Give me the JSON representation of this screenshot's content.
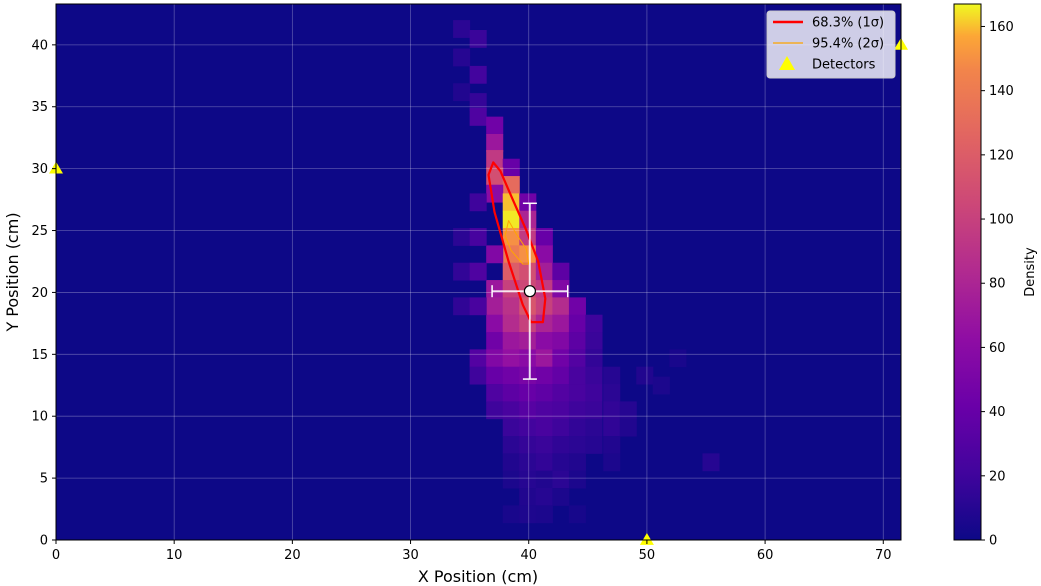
{
  "chart_data": {
    "type": "heatmap",
    "title": "",
    "xlabel": "X Position (cm)",
    "ylabel": "Y Position (cm)",
    "xlim": [
      0,
      71.5
    ],
    "ylim": [
      0,
      43.3
    ],
    "xticks": [
      0,
      10,
      20,
      30,
      40,
      50,
      60,
      70
    ],
    "yticks": [
      0,
      5,
      10,
      15,
      20,
      25,
      30,
      35,
      40
    ],
    "grid": true,
    "colormap": "plasma",
    "colorbar": {
      "label": "Density",
      "range": [
        0,
        167
      ],
      "ticks": [
        0,
        20,
        40,
        60,
        80,
        100,
        120,
        140,
        160
      ]
    },
    "bin_size": 1.4,
    "density_cells": [
      [
        34.3,
        41.3,
        12
      ],
      [
        35.7,
        40.5,
        18
      ],
      [
        34.3,
        39.0,
        10
      ],
      [
        35.7,
        37.6,
        22
      ],
      [
        34.3,
        36.2,
        8
      ],
      [
        35.7,
        35.4,
        16
      ],
      [
        35.7,
        34.2,
        28
      ],
      [
        37.1,
        33.5,
        45
      ],
      [
        37.1,
        32.1,
        70
      ],
      [
        37.1,
        30.8,
        95
      ],
      [
        38.5,
        30.1,
        40
      ],
      [
        37.1,
        29.4,
        110
      ],
      [
        38.5,
        28.7,
        130
      ],
      [
        37.1,
        28.0,
        60
      ],
      [
        38.5,
        27.3,
        160
      ],
      [
        39.9,
        27.3,
        45
      ],
      [
        38.5,
        25.9,
        165
      ],
      [
        39.9,
        25.9,
        80
      ],
      [
        38.5,
        24.5,
        150
      ],
      [
        39.9,
        24.5,
        95
      ],
      [
        41.3,
        24.5,
        40
      ],
      [
        38.5,
        23.1,
        140
      ],
      [
        39.9,
        23.1,
        150
      ],
      [
        41.3,
        23.1,
        60
      ],
      [
        37.1,
        23.1,
        55
      ],
      [
        38.5,
        21.7,
        120
      ],
      [
        39.9,
        21.7,
        110
      ],
      [
        41.3,
        21.7,
        75
      ],
      [
        42.7,
        21.7,
        35
      ],
      [
        37.1,
        20.3,
        70
      ],
      [
        38.5,
        20.3,
        100
      ],
      [
        39.9,
        20.3,
        105
      ],
      [
        41.3,
        20.3,
        95
      ],
      [
        42.7,
        20.3,
        55
      ],
      [
        37.1,
        18.9,
        75
      ],
      [
        38.5,
        18.9,
        90
      ],
      [
        39.9,
        18.9,
        115
      ],
      [
        41.3,
        18.9,
        100
      ],
      [
        42.7,
        18.9,
        85
      ],
      [
        44.1,
        18.9,
        45
      ],
      [
        37.1,
        17.5,
        60
      ],
      [
        38.5,
        17.5,
        85
      ],
      [
        39.9,
        17.5,
        100
      ],
      [
        41.3,
        17.5,
        80
      ],
      [
        42.7,
        17.5,
        70
      ],
      [
        44.1,
        17.5,
        40
      ],
      [
        45.5,
        17.5,
        20
      ],
      [
        37.1,
        16.1,
        45
      ],
      [
        38.5,
        16.1,
        70
      ],
      [
        39.9,
        16.1,
        75
      ],
      [
        41.3,
        16.1,
        60
      ],
      [
        42.7,
        16.1,
        55
      ],
      [
        44.1,
        16.1,
        35
      ],
      [
        45.5,
        16.1,
        18
      ],
      [
        35.7,
        14.7,
        30
      ],
      [
        37.1,
        14.7,
        55
      ],
      [
        38.5,
        14.7,
        65
      ],
      [
        39.9,
        14.7,
        60
      ],
      [
        41.3,
        14.7,
        70
      ],
      [
        42.7,
        14.7,
        45
      ],
      [
        44.1,
        14.7,
        30
      ],
      [
        45.5,
        14.7,
        15
      ],
      [
        35.7,
        13.3,
        20
      ],
      [
        37.1,
        13.3,
        40
      ],
      [
        38.5,
        13.3,
        45
      ],
      [
        39.9,
        13.3,
        50
      ],
      [
        41.3,
        13.3,
        45
      ],
      [
        42.7,
        13.3,
        38
      ],
      [
        44.1,
        13.3,
        25
      ],
      [
        45.5,
        13.3,
        18
      ],
      [
        47.0,
        13.3,
        10
      ],
      [
        37.1,
        11.9,
        28
      ],
      [
        38.5,
        11.9,
        35
      ],
      [
        39.9,
        11.9,
        40
      ],
      [
        41.3,
        11.9,
        36
      ],
      [
        42.7,
        11.9,
        30
      ],
      [
        44.1,
        11.9,
        25
      ],
      [
        45.5,
        11.9,
        20
      ],
      [
        47.0,
        11.9,
        12
      ],
      [
        37.1,
        10.5,
        20
      ],
      [
        38.5,
        10.5,
        25
      ],
      [
        39.9,
        10.5,
        32
      ],
      [
        41.3,
        10.5,
        28
      ],
      [
        42.7,
        10.5,
        26
      ],
      [
        44.1,
        10.5,
        20
      ],
      [
        45.5,
        10.5,
        18
      ],
      [
        47.0,
        10.5,
        15
      ],
      [
        48.4,
        10.5,
        10
      ],
      [
        38.5,
        9.1,
        18
      ],
      [
        39.9,
        9.1,
        22
      ],
      [
        41.3,
        9.1,
        25
      ],
      [
        42.7,
        9.1,
        20
      ],
      [
        44.1,
        9.1,
        15
      ],
      [
        45.5,
        9.1,
        12
      ],
      [
        47.0,
        9.1,
        14
      ],
      [
        48.4,
        9.1,
        8
      ],
      [
        38.5,
        7.7,
        12
      ],
      [
        39.9,
        7.7,
        16
      ],
      [
        41.3,
        7.7,
        18
      ],
      [
        42.7,
        7.7,
        14
      ],
      [
        44.1,
        7.7,
        12
      ],
      [
        45.5,
        7.7,
        10
      ],
      [
        47.0,
        7.7,
        8
      ],
      [
        38.5,
        6.3,
        8
      ],
      [
        39.9,
        6.3,
        12
      ],
      [
        41.3,
        6.3,
        15
      ],
      [
        42.7,
        6.3,
        10
      ],
      [
        44.1,
        6.3,
        8
      ],
      [
        47.0,
        6.3,
        6
      ],
      [
        38.5,
        4.9,
        6
      ],
      [
        39.9,
        4.9,
        10
      ],
      [
        41.3,
        4.9,
        8
      ],
      [
        42.7,
        4.9,
        12
      ],
      [
        44.1,
        4.9,
        6
      ],
      [
        39.9,
        3.5,
        8
      ],
      [
        41.3,
        3.5,
        10
      ],
      [
        42.7,
        3.5,
        6
      ],
      [
        38.5,
        2.1,
        5
      ],
      [
        39.9,
        2.1,
        7
      ],
      [
        41.3,
        2.1,
        6
      ],
      [
        44.1,
        2.1,
        4
      ],
      [
        49.8,
        13.3,
        8
      ],
      [
        51.2,
        12.5,
        6
      ],
      [
        52.6,
        14.7,
        5
      ],
      [
        55.4,
        6.3,
        10
      ],
      [
        34.3,
        24.5,
        12
      ],
      [
        34.3,
        21.7,
        15
      ],
      [
        34.3,
        18.9,
        14
      ],
      [
        35.7,
        21.7,
        28
      ],
      [
        35.7,
        24.5,
        24
      ],
      [
        35.7,
        18.9,
        25
      ],
      [
        35.7,
        27.3,
        20
      ]
    ],
    "contours": [
      {
        "label": "68.3% (1σ)",
        "color": "#ff0000",
        "x": [
          37.0,
          37.6,
          38.6,
          39.8,
          40.8,
          41.4,
          41.2,
          40.2,
          39.5,
          38.3,
          37.1,
          36.6,
          37.0
        ],
        "y": [
          30.5,
          29.8,
          27.6,
          25.0,
          22.5,
          19.5,
          17.6,
          17.6,
          19.0,
          22.5,
          26.5,
          29.5,
          30.5
        ]
      },
      {
        "label": "95.4% (2σ)",
        "color": "#ffa500",
        "x": [
          38.3,
          38.9,
          39.8,
          40.0,
          39.5,
          38.5,
          38.0,
          38.3
        ],
        "y": [
          25.8,
          24.8,
          23.5,
          22.3,
          22.3,
          23.4,
          24.6,
          25.8
        ]
      }
    ],
    "estimate": {
      "x": 40.1,
      "y": 20.1,
      "x_err": 3.2,
      "y_err": 7.1
    },
    "detectors": [
      {
        "x": 0,
        "y": 30
      },
      {
        "x": 71.5,
        "y": 40
      },
      {
        "x": 50,
        "y": 0
      }
    ],
    "legend": {
      "placement": "top-right",
      "entries": [
        {
          "label": "68.3% (1σ)",
          "color": "#ff0000",
          "marker": "line-thick"
        },
        {
          "label": "95.4% (2σ)",
          "color": "#ffa500",
          "marker": "line-thin"
        },
        {
          "label": "Detectors",
          "color": "#ffff00",
          "marker": "triangle"
        }
      ]
    }
  }
}
